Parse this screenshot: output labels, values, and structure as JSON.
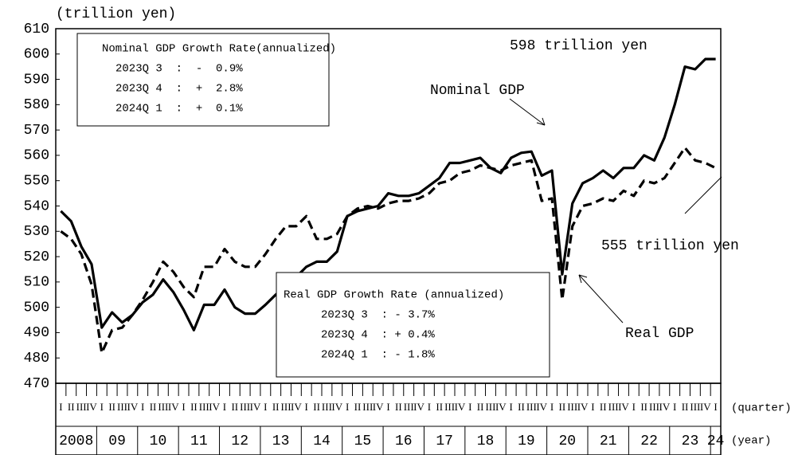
{
  "chart_data": {
    "type": "line",
    "y_axis_label": "(trillion yen)",
    "quarter_axis_label": "(quarter)",
    "year_axis_label": "(year)",
    "categories": [
      "I",
      "II",
      "III",
      "IV",
      "I",
      "II",
      "III",
      "IV",
      "I",
      "II",
      "III",
      "IV",
      "I",
      "II",
      "III",
      "IV",
      "I",
      "II",
      "III",
      "IV",
      "I",
      "II",
      "III",
      "IV",
      "I",
      "II",
      "III",
      "IV",
      "I",
      "II",
      "III",
      "IV",
      "I",
      "II",
      "III",
      "IV",
      "I",
      "II",
      "III",
      "IV",
      "I",
      "II",
      "III",
      "IV",
      "I",
      "II",
      "III",
      "IV",
      "I",
      "II",
      "III",
      "IV",
      "I",
      "II",
      "III",
      "IV",
      "I",
      "II",
      "III",
      "IV",
      "I",
      "II",
      "III",
      "IV",
      "I"
    ],
    "year_labels": [
      "2008",
      "09",
      "10",
      "11",
      "12",
      "13",
      "14",
      "15",
      "16",
      "17",
      "18",
      "19",
      "20",
      "21",
      "22",
      "23",
      "24"
    ],
    "ylim": [
      470,
      610
    ],
    "yticks": [
      470,
      480,
      490,
      500,
      510,
      520,
      530,
      540,
      550,
      560,
      570,
      580,
      590,
      600,
      610
    ],
    "series": [
      {
        "name": "Nominal GDP",
        "color": "#000000",
        "dash": false,
        "values": [
          538,
          534,
          524,
          517,
          492,
          498,
          494,
          497,
          502,
          505,
          511,
          506,
          499,
          491,
          501,
          501,
          507,
          500,
          497.5,
          497.5,
          501,
          505,
          508,
          512,
          516,
          518,
          518,
          522,
          536,
          538,
          539,
          540,
          545,
          544,
          544,
          545,
          548,
          551,
          557,
          557,
          558,
          559,
          555,
          553,
          559,
          561,
          561.5,
          552,
          554,
          513,
          541,
          549,
          551,
          554,
          551,
          555,
          555,
          560,
          558,
          567,
          580,
          595,
          594,
          598,
          598
        ]
      },
      {
        "name": "Real GDP",
        "color": "#000000",
        "dash": true,
        "values": [
          530,
          527,
          521,
          509,
          482,
          491,
          492,
          497,
          503,
          510,
          518,
          514,
          508,
          504,
          516,
          516,
          523,
          518,
          516,
          516,
          521,
          527,
          532,
          532,
          536,
          527,
          527,
          529,
          536,
          539,
          540,
          539,
          541,
          542,
          542,
          543,
          545,
          549,
          550,
          553,
          554,
          556,
          555,
          554,
          556,
          557,
          558,
          542,
          543,
          503,
          532,
          540,
          541,
          543,
          542,
          546,
          544,
          550,
          549,
          551,
          557,
          563,
          558,
          557,
          555
        ]
      }
    ],
    "annotations": {
      "nominal_end": "598 trillion yen",
      "real_end": "555 trillion yen",
      "nominal_box": {
        "title": "Nominal GDP Growth Rate(annualized)",
        "lines": [
          "2023Q 3  :  -  0.9%",
          "2023Q 4  :  +  2.8%",
          "2024Q 1  :  +  0.1%"
        ]
      },
      "real_box": {
        "title": "Real GDP Growth Rate (annualized)",
        "lines": [
          "2023Q 3  : - 3.7%",
          "2023Q 4  : + 0.4%",
          "2024Q 1  : - 1.8%"
        ]
      }
    }
  }
}
